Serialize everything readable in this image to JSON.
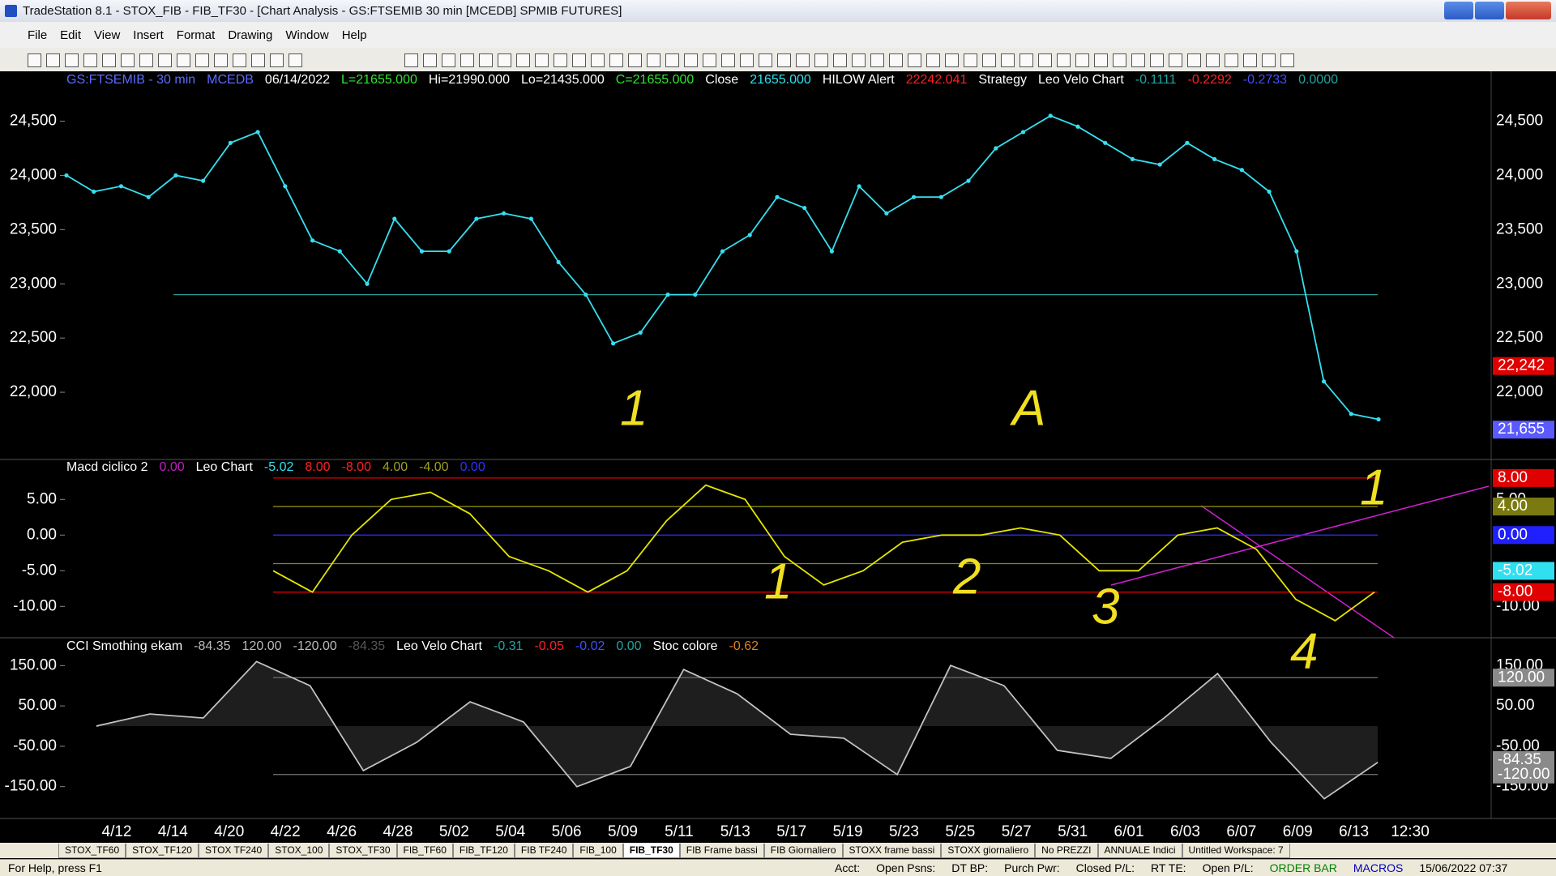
{
  "window": {
    "title": "TradeStation 8.1 - STOX_FIB - FIB_TF30 - [Chart Analysis - GS:FTSEMIB  30 min  [MCEDB] SPMIB FUTURES]",
    "menu": [
      "File",
      "Edit",
      "View",
      "Insert",
      "Format",
      "Drawing",
      "Window",
      "Help"
    ]
  },
  "chart_data": [
    {
      "type": "line",
      "header": [
        {
          "text": "GS:FTSEMIB - 30 min",
          "color": "#5a6cff"
        },
        {
          "text": "MCEDB",
          "color": "#5a6cff"
        },
        {
          "text": "06/14/2022",
          "color": "#ffffff"
        },
        {
          "text": "L=21655.000",
          "color": "#2ee62e"
        },
        {
          "text": "Hi=21990.000",
          "color": "#ffffff"
        },
        {
          "text": "Lo=21435.000",
          "color": "#ffffff"
        },
        {
          "text": "C=21655.000",
          "color": "#2ee62e"
        },
        {
          "text": "Close",
          "color": "#ffffff"
        },
        {
          "text": "21655.000",
          "color": "#30e0f0"
        },
        {
          "text": "HILOW Alert",
          "color": "#ffffff"
        },
        {
          "text": "22242.041",
          "color": "#ff2020"
        },
        {
          "text": "Strategy",
          "color": "#ffffff"
        },
        {
          "text": "Leo Velo Chart",
          "color": "#ffffff"
        },
        {
          "text": "-0.1111",
          "color": "#1fa6a0"
        },
        {
          "text": "-0.2292",
          "color": "#ff2020"
        },
        {
          "text": "-0.2733",
          "color": "#4050ff"
        },
        {
          "text": "0.0000",
          "color": "#1fa6a0"
        }
      ],
      "color": "#35e0f0",
      "values": [
        24000,
        23850,
        23900,
        23800,
        24000,
        23950,
        24300,
        24400,
        23900,
        23400,
        23300,
        23000,
        23600,
        23300,
        23300,
        23600,
        23650,
        23600,
        23200,
        22900,
        22450,
        22550,
        22900,
        22900,
        23300,
        23450,
        23800,
        23700,
        23300,
        23900,
        23650,
        23800,
        23800,
        23950,
        24250,
        24400,
        24550,
        24450,
        24300,
        24150,
        24100,
        24300,
        24150,
        24050,
        23850,
        23300,
        22100,
        21800,
        21750
      ],
      "ylim": [
        21380,
        24960
      ],
      "yticks": [
        {
          "value": 24500,
          "label": "24,500"
        },
        {
          "value": 24000,
          "label": "24,000"
        },
        {
          "value": 23500,
          "label": "23,500"
        },
        {
          "value": 23000,
          "label": "23,000"
        },
        {
          "value": 22500,
          "label": "22,500"
        },
        {
          "value": 22000,
          "label": "22,000"
        }
      ],
      "levels": [
        {
          "value": 22900,
          "color": "#2a9a94"
        }
      ],
      "badges": [
        {
          "value": 22242,
          "label": "22,242",
          "color": "#e00000"
        },
        {
          "value": 21655,
          "label": "21,655",
          "color": "#5a5aff"
        }
      ],
      "annotations": [
        "1",
        "A"
      ]
    },
    {
      "type": "line",
      "header": [
        {
          "text": "Macd ciclico 2",
          "color": "#ffffff"
        },
        {
          "text": "0.00",
          "color": "#c020c0"
        },
        {
          "text": "Leo Chart",
          "color": "#ffffff"
        },
        {
          "text": "-5.02",
          "color": "#30e0f0"
        },
        {
          "text": "8.00",
          "color": "#ff2020"
        },
        {
          "text": "-8.00",
          "color": "#ff2020"
        },
        {
          "text": "4.00",
          "color": "#a0a020"
        },
        {
          "text": "-4.00",
          "color": "#a0a020"
        },
        {
          "text": "0.00",
          "color": "#3030ff"
        }
      ],
      "color": "#e6e600",
      "values": [
        -5,
        -8,
        0,
        5,
        6,
        3,
        -3,
        -5,
        -8,
        -5,
        2,
        7,
        5,
        -3,
        -7,
        -5,
        -1,
        0,
        0,
        1,
        0,
        -5,
        -5,
        0,
        1,
        -2,
        -9,
        -12,
        -8
      ],
      "ylim": [
        -14.4,
        10.6
      ],
      "yticks": [
        {
          "value": 5,
          "label": "5.00"
        },
        {
          "value": 0,
          "label": "0.00"
        },
        {
          "value": -5,
          "label": "-5.00"
        },
        {
          "value": -10,
          "label": "-10.00"
        }
      ],
      "levels": [
        {
          "value": 8,
          "color": "#e00000"
        },
        {
          "value": 4,
          "color": "#8a8a10"
        },
        {
          "value": 0,
          "color": "#3030ff"
        },
        {
          "value": -4,
          "color": "#8a8a10"
        },
        {
          "value": -8,
          "color": "#e00000"
        }
      ],
      "badges": [
        {
          "value": 8,
          "label": "8.00",
          "color": "#e00000"
        },
        {
          "value": 4,
          "label": "4.00",
          "color": "#7a7a10"
        },
        {
          "value": 0,
          "label": "0.00",
          "color": "#2020ff"
        },
        {
          "value": -5.02,
          "label": "-5.02",
          "color": "#30e0f0"
        },
        {
          "value": -8,
          "label": "-8.00",
          "color": "#e00000"
        }
      ],
      "annotations": [
        "1",
        "2",
        "3",
        "4",
        "1"
      ]
    },
    {
      "type": "line",
      "header": [
        {
          "text": "CCI Smothing ekam",
          "color": "#ffffff"
        },
        {
          "text": "-84.35",
          "color": "#bbbbbb"
        },
        {
          "text": "120.00",
          "color": "#bbbbbb"
        },
        {
          "text": "-120.00",
          "color": "#bbbbbb"
        },
        {
          "text": "-84.35",
          "color": "#555555"
        },
        {
          "text": "Leo Velo Chart",
          "color": "#ffffff"
        },
        {
          "text": "-0.31",
          "color": "#1fa6a0"
        },
        {
          "text": "-0.05",
          "color": "#ff2020"
        },
        {
          "text": "-0.02",
          "color": "#4050ff"
        },
        {
          "text": "0.00",
          "color": "#1fa6a0"
        },
        {
          "text": "Stoc colore",
          "color": "#ffffff"
        },
        {
          "text": "-0.62",
          "color": "#e08020"
        }
      ],
      "color": "#d8d8d8",
      "values": [
        0,
        30,
        20,
        160,
        100,
        -110,
        -40,
        60,
        10,
        -150,
        -100,
        140,
        80,
        -20,
        -30,
        -120,
        150,
        100,
        -60,
        -80,
        20,
        130,
        -40,
        -180,
        -90
      ],
      "ylim": [
        -229,
        219
      ],
      "yticks": [
        {
          "value": 150,
          "label": "150.00"
        },
        {
          "value": 50,
          "label": "50.00"
        },
        {
          "value": -50,
          "label": "-50.00"
        },
        {
          "value": -150,
          "label": "-150.00"
        }
      ],
      "levels": [
        {
          "value": 120,
          "color": "#777777"
        },
        {
          "value": -120,
          "color": "#777777"
        }
      ],
      "badges": [
        {
          "value": 120,
          "label": "120.00",
          "color": "#8a8a8a"
        },
        {
          "value": -84.35,
          "label": "-84.35",
          "color": "#8a8a8a"
        },
        {
          "value": -120,
          "label": "-120.00",
          "color": "#8a8a8a"
        }
      ],
      "annotations": []
    }
  ],
  "x_axis": {
    "labels": [
      "4/12",
      "4/14",
      "4/20",
      "4/22",
      "4/26",
      "4/28",
      "5/02",
      "5/04",
      "5/06",
      "5/09",
      "5/11",
      "5/13",
      "5/17",
      "5/19",
      "5/23",
      "5/25",
      "5/27",
      "5/31",
      "6/01",
      "6/03",
      "6/07",
      "6/09",
      "6/13",
      "12:30"
    ]
  },
  "tabs": {
    "items": [
      "STOX_TF60",
      "STOX_TF120",
      "STOX TF240",
      "STOX_100",
      "STOX_TF30",
      "FIB_TF60",
      "FIB_TF120",
      "FIB TF240",
      "FIB_100",
      "FIB_TF30",
      "FIB Frame bassi",
      "FIB Giornaliero",
      "STOXX frame bassi",
      "STOXX giornaliero",
      "No PREZZI",
      "ANNUALE Indici",
      "Untitled Workspace: 7"
    ],
    "active": "FIB_TF30"
  },
  "status": {
    "help": "For Help, press F1",
    "fields": [
      "Acct:",
      "Open Psns:",
      "DT BP:",
      "Purch Pwr:",
      "Closed P/L:",
      "RT TE:",
      "Open P/L:"
    ],
    "order_bar": "ORDER BAR",
    "macros": "MACROS",
    "datetime": "15/06/2022 07:37"
  }
}
